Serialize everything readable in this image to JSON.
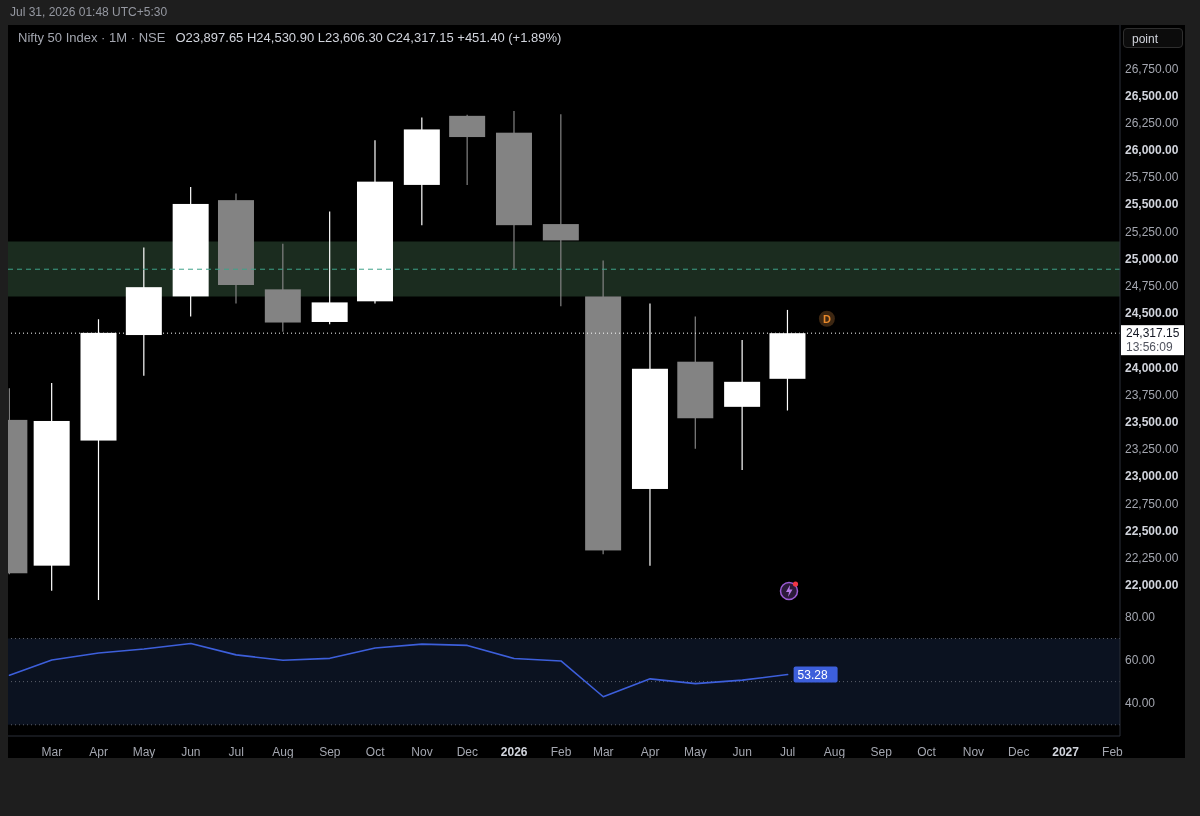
{
  "chart_data": [
    {
      "type": "candlestick",
      "title": "Nifty 50 Index · 1M · NSE",
      "subtitle": "O23,897.65 H24,530.90 L23,606.30 C24,317.15 +451.40 (+1.89%)",
      "x": [
        "2025-02",
        "2025-03",
        "2025-04",
        "2025-05",
        "2025-06",
        "2025-07",
        "2025-08",
        "2025-09",
        "2025-10",
        "2025-11",
        "2025-12",
        "2026-01",
        "2026-02",
        "2026-03",
        "2026-04",
        "2026-05",
        "2026-06",
        "2026-07"
      ],
      "ohlc": [
        [
          23520,
          23810,
          22100,
          22110
        ],
        [
          22180,
          23860,
          21950,
          23510
        ],
        [
          23330,
          24445,
          21865,
          24320
        ],
        [
          24300,
          25105,
          23925,
          24740
        ],
        [
          24655,
          25660,
          24470,
          25505
        ],
        [
          25540,
          25600,
          24590,
          24760
        ],
        [
          24720,
          25140,
          24330,
          24415
        ],
        [
          24420,
          25435,
          24400,
          24600
        ],
        [
          24610,
          26090,
          24590,
          25710
        ],
        [
          25680,
          26300,
          25310,
          26190
        ],
        [
          26315,
          26325,
          25680,
          26120
        ],
        [
          26160,
          26360,
          24910,
          25310
        ],
        [
          25320,
          26330,
          24565,
          25170
        ],
        [
          24655,
          24985,
          22285,
          22320
        ],
        [
          22885,
          24590,
          22180,
          23990
        ],
        [
          24055,
          24470,
          23255,
          23535
        ],
        [
          23640,
          24255,
          23060,
          23870
        ],
        [
          23897.65,
          24530.9,
          23606.3,
          24317.15
        ]
      ],
      "colors": [
        "#838383",
        "#ffffff",
        "#ffffff",
        "#ffffff",
        "#ffffff",
        "#838383",
        "#838383",
        "#ffffff",
        "#ffffff",
        "#ffffff",
        "#838383",
        "#838383",
        "#838383",
        "#838383",
        "#ffffff",
        "#838383",
        "#ffffff",
        "#ffffff"
      ],
      "xlim": [
        "2025-01-31",
        "2027-02-06"
      ],
      "ylim": [
        21800,
        27150
      ],
      "yticks": [
        {
          "value": 22000,
          "label": "22,000.00"
        },
        {
          "value": 22250,
          "label": "22,250.00"
        },
        {
          "value": 22500,
          "label": "22,500.00"
        },
        {
          "value": 22750,
          "label": "22,750.00"
        },
        {
          "value": 23000,
          "label": "23,000.00"
        },
        {
          "value": 23250,
          "label": "23,250.00"
        },
        {
          "value": 23500,
          "label": "23,500.00"
        },
        {
          "value": 23750,
          "label": "23,750.00"
        },
        {
          "value": 24000,
          "label": "24,000.00"
        },
        {
          "value": 24500,
          "label": "24,500.00"
        },
        {
          "value": 24750,
          "label": "24,750.00"
        },
        {
          "value": 25000,
          "label": "25,000.00"
        },
        {
          "value": 25250,
          "label": "25,250.00"
        },
        {
          "value": 25500,
          "label": "25,500.00"
        },
        {
          "value": 25750,
          "label": "25,750.00"
        },
        {
          "value": 26000,
          "label": "26,000.00"
        },
        {
          "value": 26250,
          "label": "26,250.00"
        },
        {
          "value": 26500,
          "label": "26,500.00"
        },
        {
          "value": 26750,
          "label": "26,750.00"
        }
      ],
      "tick_labels": "y",
      "bands": [
        {
          "axis": "y",
          "from": 24655,
          "to": 25160,
          "color": "#1b2c1f"
        }
      ],
      "ref_lines": [
        {
          "axis": "y",
          "value": 24905,
          "color": "#3fa38a",
          "line_style": "dashed"
        },
        {
          "axis": "y",
          "value": 24317.15,
          "label": "24,317.15",
          "color": "#ffffff",
          "line_style": "dotted"
        }
      ],
      "annotations": [
        "13:56:09",
        {
          "text": "D",
          "x": "2026-07-27",
          "y": 24450
        },
        "point",
        "Jul 31, 2026 01:48 UTC+5:30"
      ]
    },
    {
      "type": "line",
      "x": [
        "2025-02",
        "2025-03",
        "2025-04",
        "2025-05",
        "2025-06",
        "2025-07",
        "2025-08",
        "2025-09",
        "2025-10",
        "2025-11",
        "2025-12",
        "2026-01",
        "2026-02",
        "2026-03",
        "2026-04",
        "2026-05",
        "2026-06",
        "2026-07"
      ],
      "series": [
        {
          "color": "#3d5fdb",
          "values": [
            53,
            60,
            63.3,
            65.1,
            67.7,
            62.4,
            59.9,
            60.8,
            65.6,
            67.4,
            66.8,
            60.7,
            59.6,
            43,
            51.3,
            49.1,
            50.7,
            53.28
          ],
          "value_labels": [
            null,
            null,
            null,
            null,
            null,
            null,
            null,
            null,
            null,
            null,
            null,
            null,
            null,
            null,
            null,
            null,
            null,
            "53.28"
          ]
        }
      ],
      "xlim": [
        "2025-01-31",
        "2027-02-06"
      ],
      "xticks": [
        {
          "value": "2025-03",
          "label": "Mar"
        },
        {
          "value": "2025-04",
          "label": "Apr"
        },
        {
          "value": "2025-05",
          "label": "May"
        },
        {
          "value": "2025-06",
          "label": "Jun"
        },
        {
          "value": "2025-07",
          "label": "Jul"
        },
        {
          "value": "2025-08",
          "label": "Aug"
        },
        {
          "value": "2025-09",
          "label": "Sep"
        },
        {
          "value": "2025-10",
          "label": "Oct"
        },
        {
          "value": "2025-11",
          "label": "Nov"
        },
        {
          "value": "2025-12",
          "label": "Dec"
        },
        {
          "value": "2026-01",
          "label": "2026"
        },
        {
          "value": "2026-02",
          "label": "Feb"
        },
        {
          "value": "2026-03",
          "label": "Mar"
        },
        {
          "value": "2026-04",
          "label": "Apr"
        },
        {
          "value": "2026-05",
          "label": "May"
        },
        {
          "value": "2026-06",
          "label": "Jun"
        },
        {
          "value": "2026-07",
          "label": "Jul"
        },
        {
          "value": "2026-08",
          "label": "Aug"
        },
        {
          "value": "2026-09",
          "label": "Sep"
        },
        {
          "value": "2026-10",
          "label": "Oct"
        },
        {
          "value": "2026-11",
          "label": "Nov"
        },
        {
          "value": "2026-12",
          "label": "Dec"
        },
        {
          "value": "2027-01",
          "label": "2027"
        },
        {
          "value": "2027-02",
          "label": "Feb"
        }
      ],
      "ylim": [
        24.8,
        84.6
      ],
      "yticks": [
        {
          "value": 40,
          "label": "40.00"
        },
        {
          "value": 60,
          "label": "60.00"
        },
        {
          "value": 80,
          "label": "80.00"
        }
      ],
      "bands": [
        {
          "axis": "y",
          "from": 30,
          "to": 70,
          "color": "#0b1220"
        }
      ],
      "ref_lines": [
        {
          "axis": "y",
          "value": 70,
          "color": "#5d606b",
          "line_style": "dotted"
        },
        {
          "axis": "y",
          "value": 50,
          "color": "#5d606b",
          "line_style": "dotted"
        },
        {
          "axis": "y",
          "value": 30,
          "color": "#5d606b",
          "line_style": "dotted"
        }
      ]
    }
  ]
}
